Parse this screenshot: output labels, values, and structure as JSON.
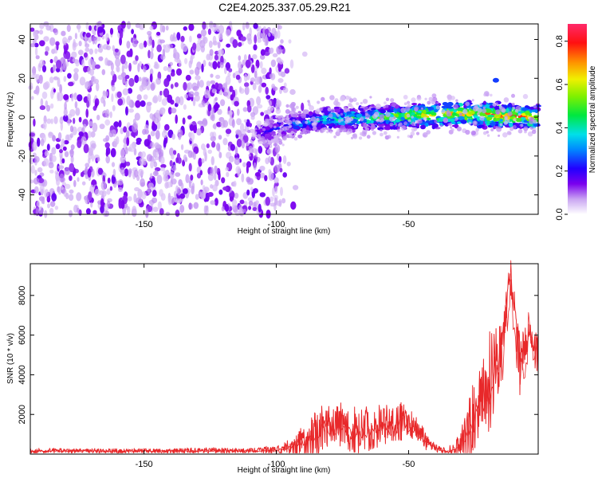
{
  "title": "C2E4.2025.337.05.29.R21",
  "chart_data": [
    {
      "type": "heatmap",
      "name": "spectrogram",
      "xlabel": "Height of straight line (km)",
      "ylabel": "Frequency (Hz)",
      "xlim": [
        -193,
        -1
      ],
      "ylim": [
        -50,
        48
      ],
      "xticks": [
        -150,
        -100,
        -50
      ],
      "xtick_labels": [
        "-150",
        "-100",
        "-50"
      ],
      "yticks": [
        -40,
        -20,
        0,
        20,
        40
      ],
      "ytick_labels": [
        "-40",
        "-20",
        "0",
        "20",
        "40"
      ],
      "colorbar": {
        "label": "Normalized spectral amplitude",
        "range": [
          0,
          0.88
        ],
        "ticks": [
          0,
          0.2,
          0.4,
          0.6,
          0.8
        ],
        "tick_labels": [
          "0.0",
          "0.2",
          "0.4",
          "0.6",
          "0.8"
        ]
      },
      "features": {
        "noise_region_x": [
          -193,
          -97
        ],
        "signal_band": {
          "x": [
            -107,
            -95,
            -80,
            -60,
            -45,
            -30,
            -15,
            -1
          ],
          "center_hz": [
            -9,
            -4,
            -1,
            0,
            1,
            2,
            1,
            0
          ],
          "peak_amplitude": [
            0.2,
            0.3,
            0.45,
            0.55,
            0.7,
            0.75,
            0.85,
            0.8
          ]
        },
        "isolated_blob": {
          "x": -17,
          "hz": 19,
          "amplitude": 0.25
        }
      }
    },
    {
      "type": "line",
      "name": "snr",
      "xlabel": "Height of straight line (km)",
      "ylabel": "SNR (10 * v/v)",
      "xlim": [
        -193,
        -1
      ],
      "ylim": [
        0,
        9600
      ],
      "xticks": [
        -150,
        -100,
        -50
      ],
      "xtick_labels": [
        "-150",
        "-100",
        "-50"
      ],
      "yticks": [
        2000,
        4000,
        6000,
        8000
      ],
      "ytick_labels": [
        "2000",
        "4000",
        "6000",
        "8000"
      ],
      "series": [
        {
          "name": "SNR",
          "color": "#e8282a",
          "x": [
            -193,
            -170,
            -150,
            -130,
            -110,
            -100,
            -95,
            -90,
            -85,
            -82,
            -78,
            -75,
            -70,
            -65,
            -60,
            -55,
            -52,
            -50,
            -47,
            -44,
            -41,
            -38,
            -35,
            -32,
            -29,
            -26,
            -23,
            -20,
            -17,
            -14,
            -12,
            -10,
            -8,
            -6,
            -4,
            -2,
            -1
          ],
          "y": [
            150,
            160,
            150,
            170,
            180,
            200,
            350,
            600,
            900,
            1500,
            1300,
            1400,
            1000,
            1200,
            1400,
            1300,
            1700,
            1400,
            1200,
            700,
            400,
            200,
            150,
            300,
            800,
            1500,
            2500,
            3200,
            4500,
            5500,
            8800,
            7500,
            4500,
            5500,
            6200,
            5400,
            4500
          ],
          "envelope_max": [
            300,
            300,
            300,
            320,
            350,
            450,
            800,
            1500,
            2600,
            2900,
            2700,
            2700,
            2500,
            2500,
            2600,
            2400,
            2900,
            2300,
            2000,
            1400,
            700,
            400,
            350,
            800,
            2000,
            3600,
            4800,
            6200,
            7200,
            7500,
            9600,
            8200,
            6500,
            6500,
            6800,
            7000,
            6000
          ]
        }
      ]
    }
  ]
}
